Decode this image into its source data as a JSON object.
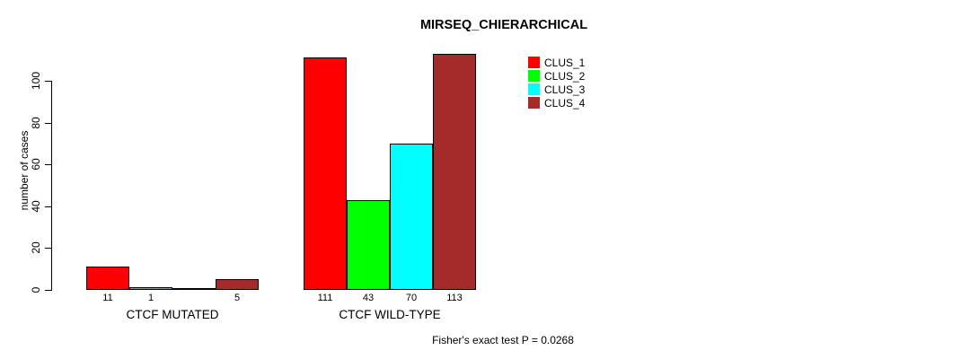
{
  "chart_data": {
    "type": "bar",
    "title": "MIRSEQ_CHIERARCHICAL",
    "ylabel": "number of cases",
    "xlabel": "",
    "ylim": [
      0,
      113
    ],
    "yticks": [
      0,
      20,
      40,
      60,
      80,
      100
    ],
    "grid": false,
    "legend_position": "top-right",
    "series": [
      {
        "name": "CLUS_1",
        "color": "#FF0000",
        "values": [
          11,
          111
        ]
      },
      {
        "name": "CLUS_2",
        "color": "#00FF00",
        "values": [
          1,
          43
        ]
      },
      {
        "name": "CLUS_3",
        "color": "#00FFFF",
        "values": [
          0,
          70
        ]
      },
      {
        "name": "CLUS_4",
        "color": "#A52A2A",
        "values": [
          5,
          113
        ]
      }
    ],
    "categories": [
      "CTCF MUTATED",
      "CTCF WILD-TYPE"
    ],
    "groups": [
      {
        "label": "CTCF MUTATED",
        "values": [
          11,
          1,
          0,
          5
        ],
        "bar_labels": [
          "11",
          "1",
          "",
          "5"
        ]
      },
      {
        "label": "CTCF WILD-TYPE",
        "values": [
          111,
          43,
          70,
          113
        ],
        "bar_labels": [
          "111",
          "43",
          "70",
          "113"
        ]
      }
    ],
    "annotation": "Fisher's exact test P = 0.0268"
  },
  "legend": {
    "items": [
      {
        "label": "CLUS_1",
        "color": "#FF0000"
      },
      {
        "label": "CLUS_2",
        "color": "#00FF00"
      },
      {
        "label": "CLUS_3",
        "color": "#00FFFF"
      },
      {
        "label": "CLUS_4",
        "color": "#A52A2A"
      }
    ]
  },
  "colors": {
    "axis": "#000000",
    "bar_outline": "#000000",
    "background": "#FFFFFF"
  }
}
